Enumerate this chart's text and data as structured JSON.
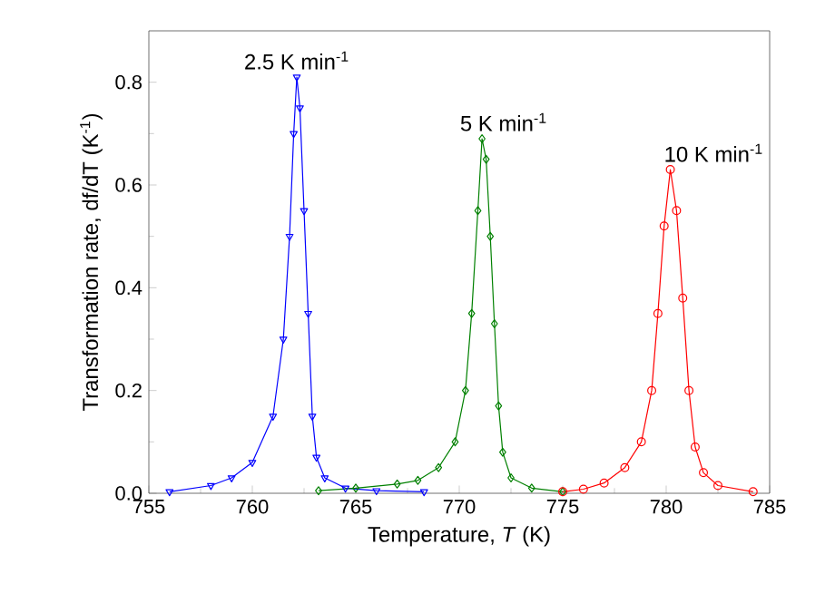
{
  "chart_data": {
    "type": "line",
    "xlabel": "Temperature, *T* (K)",
    "ylabel": "Transformation rate, df/dT (K$^{-1}$)",
    "xlim": [
      755,
      785
    ],
    "ylim": [
      0,
      0.9
    ],
    "xticks": [
      755,
      760,
      765,
      770,
      775,
      780,
      785
    ],
    "yticks": [
      {
        "value": 0,
        "label": "0.0"
      },
      {
        "value": 0.2,
        "label": "0.2"
      },
      {
        "value": 0.4,
        "label": "0.4"
      },
      {
        "value": 0.6,
        "label": "0.6"
      },
      {
        "value": 0.8,
        "label": "0.8"
      }
    ],
    "grid": false,
    "legend": false,
    "line_style": "solid",
    "series": [
      {
        "name": "2.5 K min$^{-1}$",
        "color": "#0000ff",
        "marker": "triangle",
        "x": [
          756,
          758,
          759,
          760,
          761,
          761.5,
          761.8,
          762.0,
          762.15,
          762.3,
          762.5,
          762.7,
          762.9,
          763.1,
          763.5,
          764.5,
          766,
          768.3
        ],
        "values": [
          0.003,
          0.015,
          0.03,
          0.06,
          0.15,
          0.3,
          0.5,
          0.7,
          0.81,
          0.75,
          0.55,
          0.35,
          0.15,
          0.07,
          0.03,
          0.01,
          0.005,
          0.003
        ]
      },
      {
        "name": "5 K min$^{-1}$",
        "color": "#008000",
        "marker": "diamond",
        "x": [
          763.2,
          765,
          767,
          768,
          769,
          769.8,
          770.3,
          770.6,
          770.9,
          771.1,
          771.3,
          771.5,
          771.7,
          771.9,
          772.1,
          772.5,
          773.5,
          775
        ],
        "values": [
          0.005,
          0.01,
          0.018,
          0.025,
          0.05,
          0.1,
          0.2,
          0.35,
          0.55,
          0.69,
          0.65,
          0.5,
          0.33,
          0.17,
          0.08,
          0.03,
          0.01,
          0.003
        ]
      },
      {
        "name": "10 K min$^{-1}$",
        "color": "#ff0000",
        "marker": "circle",
        "x": [
          775,
          776,
          777,
          778,
          778.8,
          779.3,
          779.6,
          779.9,
          780.2,
          780.5,
          780.8,
          781.1,
          781.4,
          781.8,
          782.5,
          784.2
        ],
        "values": [
          0.003,
          0.008,
          0.02,
          0.05,
          0.1,
          0.2,
          0.35,
          0.52,
          0.63,
          0.55,
          0.38,
          0.2,
          0.09,
          0.04,
          0.015,
          0.003
        ]
      }
    ]
  }
}
